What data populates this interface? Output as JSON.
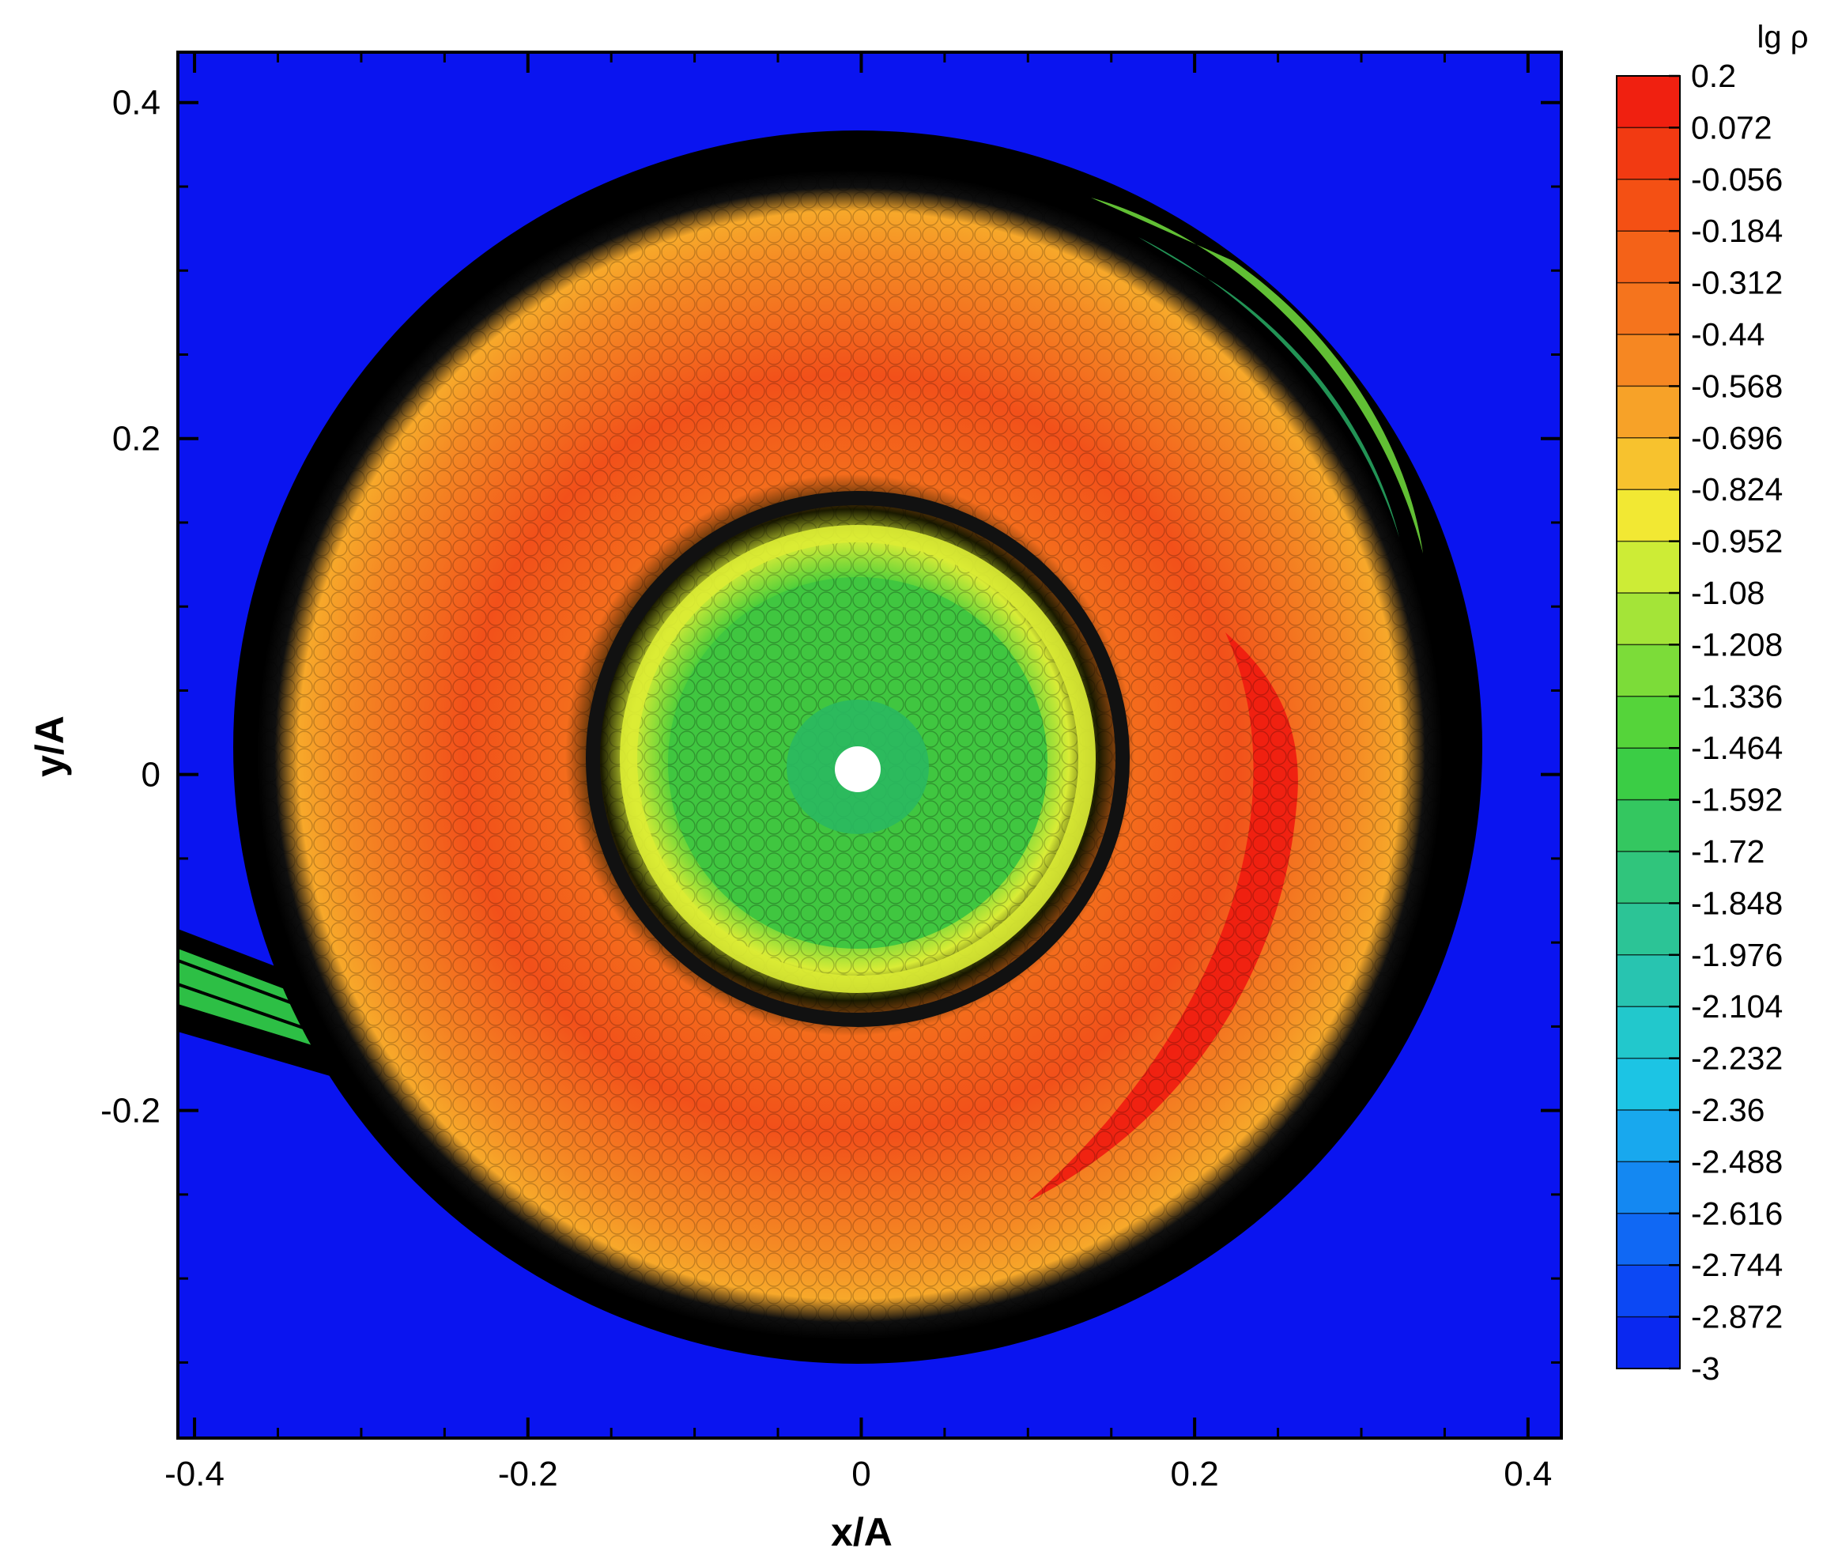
{
  "chart_data": {
    "type": "heatmap",
    "title": "",
    "xlabel": "x/A",
    "ylabel": "y/A",
    "xlim": [
      -0.41,
      0.42
    ],
    "ylim": [
      -0.395,
      0.43
    ],
    "x_ticks": [
      -0.4,
      -0.2,
      0,
      0.2,
      0.4
    ],
    "x_tick_labels": [
      "-0.4",
      "-0.2",
      "0",
      "0.2",
      "0.4"
    ],
    "y_ticks": [
      -0.2,
      0,
      0.2,
      0.4
    ],
    "y_tick_labels": [
      "-0.2",
      "0",
      "0.2",
      "0.4"
    ],
    "colorbar": {
      "title": "lg ρ",
      "levels": [
        "0.2",
        "0.072",
        "-0.056",
        "-0.184",
        "-0.312",
        "-0.44",
        "-0.568",
        "-0.696",
        "-0.824",
        "-0.952",
        "-1.08",
        "-1.208",
        "-1.336",
        "-1.464",
        "-1.592",
        "-1.72",
        "-1.848",
        "-1.976",
        "-2.104",
        "-2.232",
        "-2.36",
        "-2.488",
        "-2.616",
        "-2.744",
        "-2.872",
        "-3"
      ],
      "colors": [
        "#f02010",
        "#f23a12",
        "#f45014",
        "#f46218",
        "#f5741d",
        "#f68722",
        "#f7a228",
        "#f7c22e",
        "#f2e833",
        "#cdec36",
        "#a4e438",
        "#7cdc39",
        "#55d43a",
        "#3bcd45",
        "#34c760",
        "#30c57c",
        "#2cc496",
        "#28c4b0",
        "#22c8cc",
        "#1cc4e4",
        "#18a8ee",
        "#1488f2",
        "#1068f4",
        "#0c48f4",
        "#0a28f0"
      ],
      "placement": "right"
    },
    "background_value": -3,
    "features": [
      {
        "name": "central accretor",
        "x": 0.0,
        "y": 0.0
      },
      {
        "name": "accretion stream",
        "from_x": -0.41,
        "from_y": -0.105,
        "to_x": -0.27,
        "to_y": -0.2
      }
    ]
  }
}
